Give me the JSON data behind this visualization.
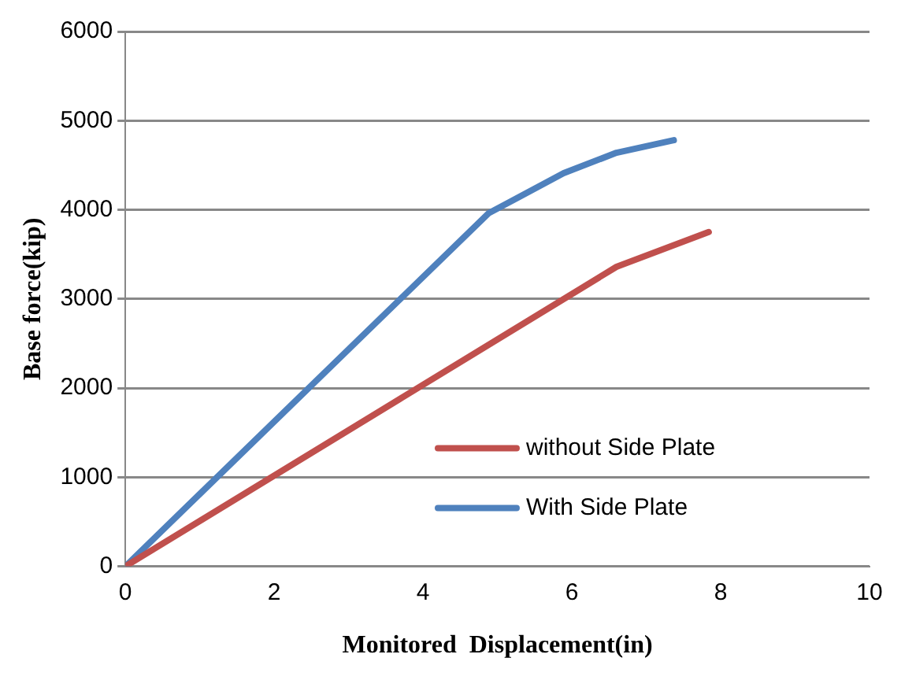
{
  "chart_data": {
    "type": "line",
    "xlabel": "Monitored  Displacement(in)",
    "ylabel": "Base force(kip)",
    "xlim": [
      0,
      10
    ],
    "xticks": [
      0,
      2,
      4,
      6,
      8,
      10
    ],
    "ylim": [
      0,
      6000
    ],
    "yticks": [
      0,
      1000,
      2000,
      3000,
      4000,
      5000,
      6000
    ],
    "grid": "y",
    "legend": "bottom right",
    "marker": "none",
    "series": [
      {
        "name": "without Side Plate",
        "color": "#c0504d",
        "x": [
          0,
          6.6,
          7.84
        ],
        "values": [
          0,
          3360,
          3750
        ]
      },
      {
        "name": "With Side Plate",
        "color": "#4f81bd",
        "x": [
          0,
          4.88,
          5.89,
          6.6,
          7.37
        ],
        "values": [
          0,
          3960,
          4410,
          4640,
          4780
        ]
      }
    ]
  }
}
